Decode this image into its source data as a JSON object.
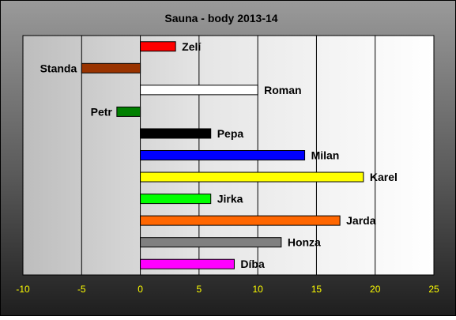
{
  "chart_data": {
    "type": "bar",
    "orientation": "horizontal",
    "title": "Sauna - body 2013-14",
    "xlim": [
      -10,
      25
    ],
    "x_ticks": [
      -10,
      -5,
      0,
      5,
      10,
      15,
      20,
      25
    ],
    "grid": true,
    "legend": "none",
    "categories": [
      "Zeli",
      "Standa",
      "Roman",
      "Petr",
      "Pepa",
      "Milan",
      "Karel",
      "Jirka",
      "Jarda",
      "Honza",
      "Diba"
    ],
    "values": [
      3,
      -5,
      10,
      -2,
      6,
      14,
      19,
      6,
      17,
      12,
      8
    ],
    "labels": [
      "Zelí",
      "Standa",
      "Roman",
      "Petr",
      "Pepa",
      "Milan",
      "Karel",
      "Jirka",
      "Jarda",
      "Honza",
      "Díba"
    ],
    "colors": [
      "#ff0000",
      "#993300",
      "#ffffff",
      "#008000",
      "#000000",
      "#0000ff",
      "#ffff00",
      "#00ff00",
      "#ff6600",
      "#808080",
      "#ff00ff"
    ],
    "tick_color": "#ffff00"
  }
}
